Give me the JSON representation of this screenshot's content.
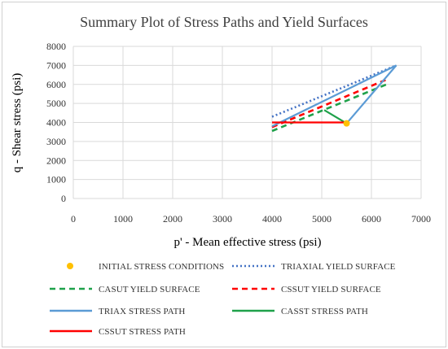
{
  "chart_data": {
    "type": "line",
    "title": "Summary Plot of Stress Paths and Yield Surfaces",
    "xlabel": "p' - Mean effective stress (psi)",
    "ylabel": "q - Shear stress (psi)",
    "xlim": [
      0,
      7000
    ],
    "ylim": [
      0,
      8000
    ],
    "xticks": [
      0,
      1000,
      2000,
      3000,
      4000,
      5000,
      6000,
      7000
    ],
    "yticks": [
      0,
      1000,
      2000,
      3000,
      4000,
      5000,
      6000,
      7000,
      8000
    ],
    "grid": true,
    "legend_position": "bottom",
    "series": [
      {
        "name": "INITIAL STRESS CONDITIONS",
        "kind": "marker",
        "color": "#FFC000",
        "dash": "none",
        "points": [
          [
            5500,
            3950
          ]
        ]
      },
      {
        "name": "TRIAXIAL YIELD SURFACE",
        "kind": "line",
        "color": "#4472C4",
        "dash": "dot",
        "points": [
          [
            4000,
            4300
          ],
          [
            6500,
            7000
          ]
        ]
      },
      {
        "name": "CASUT YIELD SURFACE",
        "kind": "line",
        "color": "#1FA14A",
        "dash": "dash",
        "points": [
          [
            4000,
            3550
          ],
          [
            6350,
            6050
          ]
        ]
      },
      {
        "name": "CSSUT YIELD SURFACE",
        "kind": "line",
        "color": "#FF0000",
        "dash": "dash",
        "points": [
          [
            4000,
            3750
          ],
          [
            6300,
            6250
          ]
        ]
      },
      {
        "name": "TRIAX STRESS PATH",
        "kind": "line",
        "color": "#5B9BD5",
        "dash": "solid",
        "points": [
          [
            5500,
            3950
          ],
          [
            6500,
            7000
          ],
          [
            4000,
            3800
          ]
        ]
      },
      {
        "name": "CASST STRESS PATH",
        "kind": "line",
        "color": "#1FA14A",
        "dash": "solid",
        "points": [
          [
            5500,
            3950
          ],
          [
            5050,
            4650
          ]
        ]
      },
      {
        "name": "CSSUT STRESS PATH",
        "kind": "line",
        "color": "#FF0000",
        "dash": "solid",
        "points": [
          [
            5500,
            4000
          ],
          [
            4000,
            4000
          ]
        ]
      }
    ]
  }
}
